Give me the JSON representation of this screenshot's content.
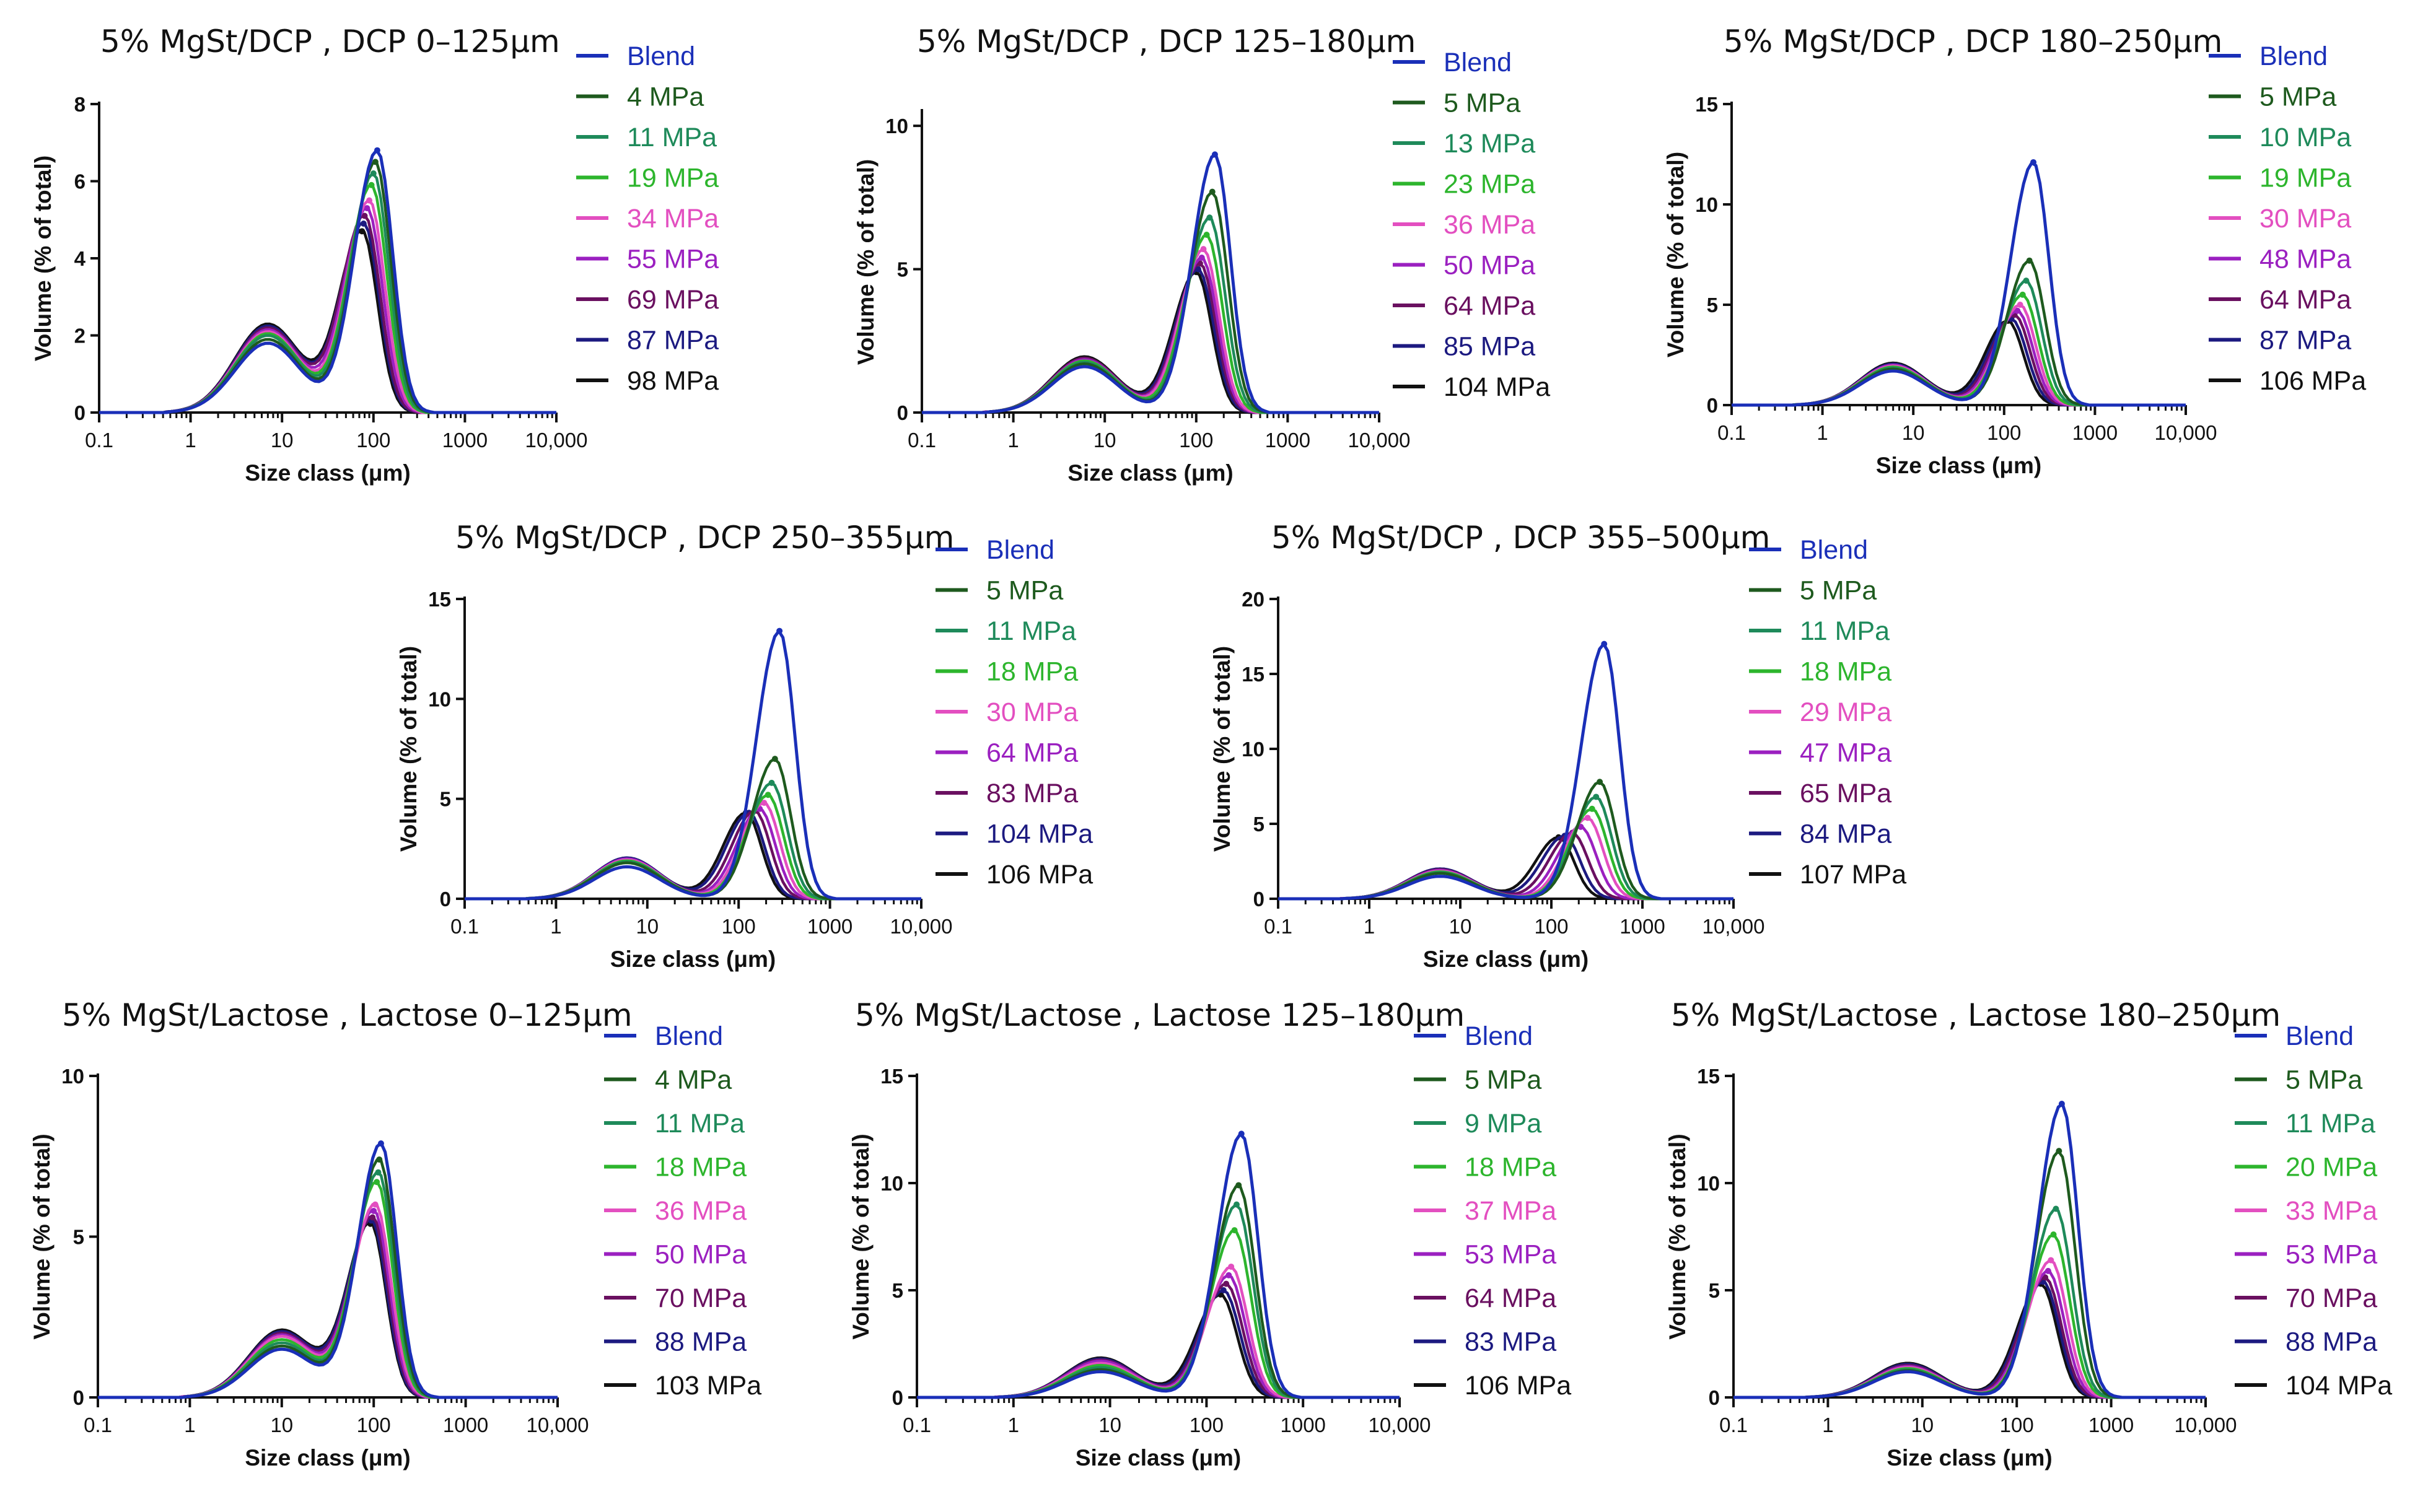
{
  "figure": {
    "series_colors": [
      "#1a2fb8",
      "#1e5a1e",
      "#1e8a5a",
      "#2db52d",
      "#e34fc0",
      "#9b20c0",
      "#6a1060",
      "#1c1a80",
      "#111111"
    ]
  },
  "chart_data": [
    {
      "type": "line",
      "title": "5% MgSt/DCP , DCP 0–125μm",
      "xlabel": "Size class (μm)",
      "ylabel": "Volume (% of total)",
      "xscale": "log",
      "xlim": [
        0.1,
        10000
      ],
      "ylim": [
        0,
        8
      ],
      "yticks": [
        0,
        2,
        4,
        6,
        8
      ],
      "xtick_labels": [
        "0.1",
        "1",
        "10",
        "100",
        "1000",
        "10,000"
      ],
      "series": [
        {
          "name": "Blend",
          "peak_x": 110,
          "peak_y": 6.8,
          "fine_x": 7,
          "fine_y": 1.8
        },
        {
          "name": "4 MPa",
          "peak_x": 105,
          "peak_y": 6.5,
          "fine_x": 7,
          "fine_y": 1.9
        },
        {
          "name": "11 MPa",
          "peak_x": 100,
          "peak_y": 6.2,
          "fine_x": 7,
          "fine_y": 2.0
        },
        {
          "name": "19 MPa",
          "peak_x": 95,
          "peak_y": 5.9,
          "fine_x": 7,
          "fine_y": 2.05
        },
        {
          "name": "34 MPa",
          "peak_x": 90,
          "peak_y": 5.5,
          "fine_x": 7,
          "fine_y": 2.1
        },
        {
          "name": "55 MPa",
          "peak_x": 85,
          "peak_y": 5.3,
          "fine_x": 7,
          "fine_y": 2.15
        },
        {
          "name": "69 MPa",
          "peak_x": 80,
          "peak_y": 5.1,
          "fine_x": 7,
          "fine_y": 2.2
        },
        {
          "name": "87 MPa",
          "peak_x": 78,
          "peak_y": 4.9,
          "fine_x": 7,
          "fine_y": 2.25
        },
        {
          "name": "98 MPa",
          "peak_x": 75,
          "peak_y": 4.7,
          "fine_x": 7,
          "fine_y": 2.3
        }
      ]
    },
    {
      "type": "line",
      "title": "5% MgSt/DCP , DCP 125–180μm",
      "xlabel": "Size class (μm)",
      "ylabel": "Volume (% of total)",
      "xscale": "log",
      "xlim": [
        0.1,
        10000
      ],
      "ylim": [
        0,
        10.5
      ],
      "yticks": [
        0,
        5,
        10
      ],
      "xtick_labels": [
        "0.1",
        "1",
        "10",
        "100",
        "1000",
        "10,000"
      ],
      "series": [
        {
          "name": "Blend",
          "peak_x": 160,
          "peak_y": 9.0,
          "fine_x": 6,
          "fine_y": 1.6
        },
        {
          "name": "5 MPa",
          "peak_x": 150,
          "peak_y": 7.7,
          "fine_x": 6,
          "fine_y": 1.7
        },
        {
          "name": "13 MPa",
          "peak_x": 140,
          "peak_y": 6.8,
          "fine_x": 6,
          "fine_y": 1.75
        },
        {
          "name": "23 MPa",
          "peak_x": 130,
          "peak_y": 6.2,
          "fine_x": 6,
          "fine_y": 1.8
        },
        {
          "name": "36 MPa",
          "peak_x": 120,
          "peak_y": 5.7,
          "fine_x": 6,
          "fine_y": 1.8
        },
        {
          "name": "50 MPa",
          "peak_x": 115,
          "peak_y": 5.4,
          "fine_x": 6,
          "fine_y": 1.85
        },
        {
          "name": "64 MPa",
          "peak_x": 110,
          "peak_y": 5.2,
          "fine_x": 6,
          "fine_y": 1.9
        },
        {
          "name": "85 MPa",
          "peak_x": 105,
          "peak_y": 5.0,
          "fine_x": 6,
          "fine_y": 1.9
        },
        {
          "name": "104 MPa",
          "peak_x": 100,
          "peak_y": 4.9,
          "fine_x": 6,
          "fine_y": 1.95
        }
      ]
    },
    {
      "type": "line",
      "title": "5% MgSt/DCP , DCP 180–250μm",
      "xlabel": "Size class (μm)",
      "ylabel": "Volume (% of total)",
      "xscale": "log",
      "xlim": [
        0.1,
        10000
      ],
      "ylim": [
        0,
        15
      ],
      "yticks": [
        0,
        5,
        10,
        15
      ],
      "xtick_labels": [
        "0.1",
        "1",
        "10",
        "100",
        "1000",
        "10,000"
      ],
      "series": [
        {
          "name": "Blend",
          "peak_x": 210,
          "peak_y": 12.1,
          "fine_x": 6,
          "fine_y": 1.7
        },
        {
          "name": "5 MPa",
          "peak_x": 190,
          "peak_y": 7.2,
          "fine_x": 6,
          "fine_y": 1.8
        },
        {
          "name": "10 MPa",
          "peak_x": 175,
          "peak_y": 6.2,
          "fine_x": 6,
          "fine_y": 1.85
        },
        {
          "name": "19 MPa",
          "peak_x": 160,
          "peak_y": 5.5,
          "fine_x": 6,
          "fine_y": 1.9
        },
        {
          "name": "30 MPa",
          "peak_x": 150,
          "peak_y": 5.0,
          "fine_x": 6,
          "fine_y": 1.95
        },
        {
          "name": "48 MPa",
          "peak_x": 140,
          "peak_y": 4.7,
          "fine_x": 6,
          "fine_y": 2.0
        },
        {
          "name": "64 MPa",
          "peak_x": 130,
          "peak_y": 4.5,
          "fine_x": 6,
          "fine_y": 2.0
        },
        {
          "name": "87 MPa",
          "peak_x": 120,
          "peak_y": 4.3,
          "fine_x": 6,
          "fine_y": 2.05
        },
        {
          "name": "106 MPa",
          "peak_x": 110,
          "peak_y": 4.2,
          "fine_x": 6,
          "fine_y": 2.1
        }
      ]
    },
    {
      "type": "line",
      "title": "5% MgSt/DCP , DCP 250–355μm",
      "xlabel": "Size class (μm)",
      "ylabel": "Volume (% of total)",
      "xscale": "log",
      "xlim": [
        0.1,
        10000
      ],
      "ylim": [
        0,
        15
      ],
      "yticks": [
        0,
        5,
        10,
        15
      ],
      "xtick_labels": [
        "0.1",
        "1",
        "10",
        "100",
        "1000",
        "10,000"
      ],
      "series": [
        {
          "name": "Blend",
          "peak_x": 280,
          "peak_y": 13.4,
          "fine_x": 6,
          "fine_y": 1.6
        },
        {
          "name": "5 MPa",
          "peak_x": 250,
          "peak_y": 7.0,
          "fine_x": 6,
          "fine_y": 1.8
        },
        {
          "name": "11 MPa",
          "peak_x": 230,
          "peak_y": 5.8,
          "fine_x": 6,
          "fine_y": 1.85
        },
        {
          "name": "18 MPa",
          "peak_x": 210,
          "peak_y": 5.2,
          "fine_x": 6,
          "fine_y": 1.9
        },
        {
          "name": "30 MPa",
          "peak_x": 190,
          "peak_y": 4.8,
          "fine_x": 6,
          "fine_y": 1.95
        },
        {
          "name": "64 MPa",
          "peak_x": 170,
          "peak_y": 4.5,
          "fine_x": 6,
          "fine_y": 2.0
        },
        {
          "name": "83 MPa",
          "peak_x": 150,
          "peak_y": 4.4,
          "fine_x": 6,
          "fine_y": 2.0
        },
        {
          "name": "104 MPa",
          "peak_x": 130,
          "peak_y": 4.3,
          "fine_x": 6,
          "fine_y": 2.05
        },
        {
          "name": "106 MPa",
          "peak_x": 120,
          "peak_y": 4.3,
          "fine_x": 6,
          "fine_y": 2.05
        }
      ]
    },
    {
      "type": "line",
      "title": "5% MgSt/DCP , DCP 355–500μm",
      "xlabel": "Size class (μm)",
      "ylabel": "Volume (% of total)",
      "xscale": "log",
      "xlim": [
        0.1,
        10000
      ],
      "ylim": [
        0,
        20
      ],
      "yticks": [
        0,
        5,
        10,
        15,
        20
      ],
      "xtick_labels": [
        "0.1",
        "1",
        "10",
        "100",
        "1000",
        "10,000"
      ],
      "series": [
        {
          "name": "Blend",
          "peak_x": 380,
          "peak_y": 17.0,
          "fine_x": 6,
          "fine_y": 1.5
        },
        {
          "name": "5 MPa",
          "peak_x": 340,
          "peak_y": 7.8,
          "fine_x": 6,
          "fine_y": 1.7
        },
        {
          "name": "11 MPa",
          "peak_x": 310,
          "peak_y": 6.8,
          "fine_x": 6,
          "fine_y": 1.75
        },
        {
          "name": "18 MPa",
          "peak_x": 280,
          "peak_y": 6.0,
          "fine_x": 6,
          "fine_y": 1.8
        },
        {
          "name": "29 MPa",
          "peak_x": 250,
          "peak_y": 5.4,
          "fine_x": 6,
          "fine_y": 1.85
        },
        {
          "name": "47 MPa",
          "peak_x": 210,
          "peak_y": 4.8,
          "fine_x": 6,
          "fine_y": 1.9
        },
        {
          "name": "65 MPa",
          "peak_x": 170,
          "peak_y": 4.4,
          "fine_x": 6,
          "fine_y": 1.95
        },
        {
          "name": "84 MPa",
          "peak_x": 140,
          "peak_y": 4.2,
          "fine_x": 6,
          "fine_y": 2.0
        },
        {
          "name": "107 MPa",
          "peak_x": 120,
          "peak_y": 4.1,
          "fine_x": 6,
          "fine_y": 2.0
        }
      ]
    },
    {
      "type": "line",
      "title": "5% MgSt/Lactose , Lactose 0–125μm",
      "xlabel": "Size class (μm)",
      "ylabel": "Volume (% of total)",
      "xscale": "log",
      "xlim": [
        0.1,
        10000
      ],
      "ylim": [
        0,
        10
      ],
      "yticks": [
        0,
        5,
        10
      ],
      "xtick_labels": [
        "0.1",
        "1",
        "10",
        "100",
        "1000",
        "10,000"
      ],
      "series": [
        {
          "name": "Blend",
          "peak_x": 120,
          "peak_y": 7.9,
          "fine_x": 10,
          "fine_y": 1.5
        },
        {
          "name": "4 MPa",
          "peak_x": 115,
          "peak_y": 7.4,
          "fine_x": 10,
          "fine_y": 1.6
        },
        {
          "name": "11 MPa",
          "peak_x": 112,
          "peak_y": 7.0,
          "fine_x": 10,
          "fine_y": 1.7
        },
        {
          "name": "18 MPa",
          "peak_x": 108,
          "peak_y": 6.7,
          "fine_x": 10,
          "fine_y": 1.8
        },
        {
          "name": "36 MPa",
          "peak_x": 104,
          "peak_y": 6.0,
          "fine_x": 10,
          "fine_y": 1.9
        },
        {
          "name": "50 MPa",
          "peak_x": 100,
          "peak_y": 5.8,
          "fine_x": 10,
          "fine_y": 1.95
        },
        {
          "name": "70 MPa",
          "peak_x": 97,
          "peak_y": 5.6,
          "fine_x": 10,
          "fine_y": 2.0
        },
        {
          "name": "88 MPa",
          "peak_x": 94,
          "peak_y": 5.5,
          "fine_x": 10,
          "fine_y": 2.05
        },
        {
          "name": "103 MPa",
          "peak_x": 92,
          "peak_y": 5.4,
          "fine_x": 10,
          "fine_y": 2.1
        }
      ]
    },
    {
      "type": "line",
      "title": "5% MgSt/Lactose , Lactose 125–180μm",
      "xlabel": "Size class (μm)",
      "ylabel": "Volume (% of total)",
      "xscale": "log",
      "xlim": [
        0.1,
        10000
      ],
      "ylim": [
        0,
        15
      ],
      "yticks": [
        0,
        5,
        10,
        15
      ],
      "xtick_labels": [
        "0.1",
        "1",
        "10",
        "100",
        "1000",
        "10,000"
      ],
      "series": [
        {
          "name": "Blend",
          "peak_x": 230,
          "peak_y": 12.3,
          "fine_x": 8,
          "fine_y": 1.2
        },
        {
          "name": "5 MPa",
          "peak_x": 215,
          "peak_y": 9.9,
          "fine_x": 8,
          "fine_y": 1.3
        },
        {
          "name": "9 MPa",
          "peak_x": 205,
          "peak_y": 9.0,
          "fine_x": 8,
          "fine_y": 1.4
        },
        {
          "name": "18 MPa",
          "peak_x": 195,
          "peak_y": 7.8,
          "fine_x": 8,
          "fine_y": 1.5
        },
        {
          "name": "37 MPa",
          "peak_x": 180,
          "peak_y": 6.1,
          "fine_x": 8,
          "fine_y": 1.6
        },
        {
          "name": "53 MPa",
          "peak_x": 170,
          "peak_y": 5.7,
          "fine_x": 8,
          "fine_y": 1.7
        },
        {
          "name": "64 MPa",
          "peak_x": 160,
          "peak_y": 5.3,
          "fine_x": 8,
          "fine_y": 1.75
        },
        {
          "name": "83 MPa",
          "peak_x": 150,
          "peak_y": 5.0,
          "fine_x": 8,
          "fine_y": 1.8
        },
        {
          "name": "106 MPa",
          "peak_x": 140,
          "peak_y": 4.8,
          "fine_x": 8,
          "fine_y": 1.85
        }
      ]
    },
    {
      "type": "line",
      "title": "5% MgSt/Lactose , Lactose 180–250μm",
      "xlabel": "Size class (μm)",
      "ylabel": "Volume (% of total)",
      "xscale": "log",
      "xlim": [
        0.1,
        10000
      ],
      "ylim": [
        0,
        15
      ],
      "yticks": [
        0,
        5,
        10,
        15
      ],
      "xtick_labels": [
        "0.1",
        "1",
        "10",
        "100",
        "1000",
        "10,000"
      ],
      "series": [
        {
          "name": "Blend",
          "peak_x": 300,
          "peak_y": 13.7,
          "fine_x": 7,
          "fine_y": 1.2
        },
        {
          "name": "5 MPa",
          "peak_x": 280,
          "peak_y": 11.5,
          "fine_x": 7,
          "fine_y": 1.25
        },
        {
          "name": "11 MPa",
          "peak_x": 260,
          "peak_y": 8.8,
          "fine_x": 7,
          "fine_y": 1.3
        },
        {
          "name": "20 MPa",
          "peak_x": 245,
          "peak_y": 7.6,
          "fine_x": 7,
          "fine_y": 1.35
        },
        {
          "name": "33 MPa",
          "peak_x": 230,
          "peak_y": 6.4,
          "fine_x": 7,
          "fine_y": 1.4
        },
        {
          "name": "53 MPa",
          "peak_x": 215,
          "peak_y": 5.9,
          "fine_x": 7,
          "fine_y": 1.45
        },
        {
          "name": "70 MPa",
          "peak_x": 200,
          "peak_y": 5.6,
          "fine_x": 7,
          "fine_y": 1.5
        },
        {
          "name": "88 MPa",
          "peak_x": 190,
          "peak_y": 5.4,
          "fine_x": 7,
          "fine_y": 1.55
        },
        {
          "name": "104 MPa",
          "peak_x": 180,
          "peak_y": 5.3,
          "fine_x": 7,
          "fine_y": 1.6
        }
      ]
    }
  ]
}
